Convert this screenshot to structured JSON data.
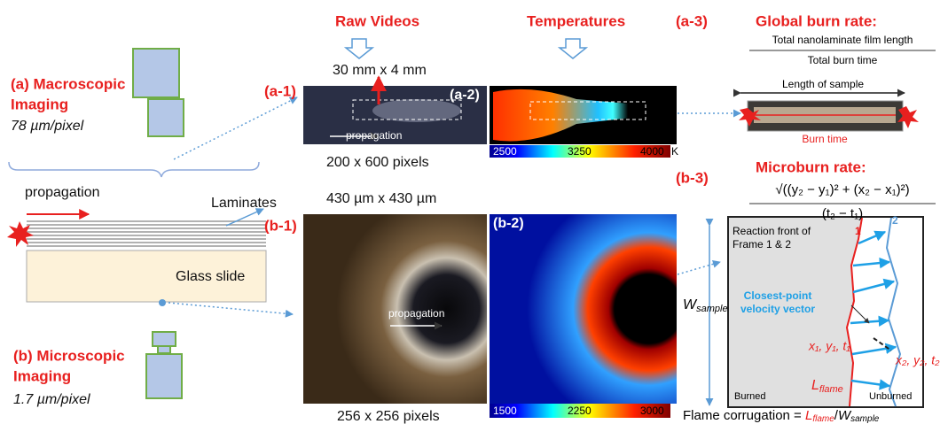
{
  "header": {
    "raw_videos": "Raw Videos",
    "temperatures": "Temperatures"
  },
  "macro": {
    "label_1": "(a) Macroscopic",
    "label_2": "Imaging",
    "resolution": "78 µm/pixel"
  },
  "micro": {
    "label_1": "(b) Microscopic",
    "label_2": "Imaging",
    "resolution": "1.7 µm/pixel"
  },
  "sample": {
    "propagation": "propagation",
    "laminates": "Laminates",
    "glass": "Glass slide"
  },
  "a1": {
    "label": "(a-1)",
    "size": "30 mm x 4 mm",
    "propagation": "propagation",
    "pixels": "200 x 600 pixels"
  },
  "a2": {
    "label": "(a-2)",
    "colorbar": [
      2500,
      3250,
      4000
    ],
    "unit": "K"
  },
  "b1": {
    "label": "(b-1)",
    "size": "430 µm x 430 µm",
    "propagation": "propagation",
    "pixels": "256 x 256 pixels"
  },
  "b2": {
    "label": "(b-2)",
    "colorbar": [
      1500,
      2250,
      3000
    ]
  },
  "a3": {
    "label": "(a-3)",
    "title": "Global burn rate:",
    "numerator": "Total nanolaminate film length",
    "denominator": "Total burn time",
    "length": "Length of sample",
    "burn_time": "Burn time"
  },
  "b3": {
    "label": "(b-3)",
    "title": "Microburn rate:",
    "numerator": "√((y₂ − y₁)² + (x₂ − x₁)²)",
    "denominator": "(t₂ − t₁)",
    "front": "Reaction front of",
    "front_2": "Frame 1 & 2",
    "frame_1": "1",
    "frame_2": "2",
    "vector_1": "Closest-point",
    "vector_2": "velocity vector",
    "point_1": "x₁, y₁, t₁",
    "point_2": "x₂, y₂, t₂",
    "w": "W",
    "w_sub": "sample",
    "l": "L",
    "l_sub": "flame",
    "burned": "Burned",
    "unburned": "Unburned",
    "corrugation": "Flame corrugation = ",
    "c_l": "L",
    "c_l_sub": "flame",
    "c_slash": "/",
    "c_w": "W",
    "c_w_sub": "sample"
  }
}
